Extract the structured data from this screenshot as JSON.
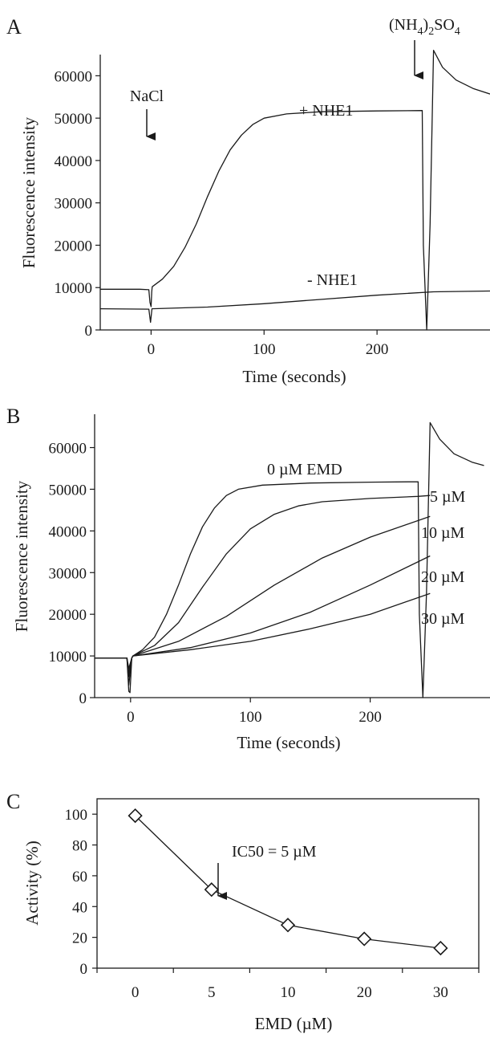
{
  "chart_data": [
    {
      "panel": "A",
      "type": "line",
      "title": "",
      "xlabel": "Time (seconds)",
      "ylabel": "Fluorescence intensity",
      "xlim": [
        -45,
        300
      ],
      "ylim": [
        0,
        65000
      ],
      "x_ticks": [
        0,
        100,
        200
      ],
      "y_ticks": [
        0,
        10000,
        20000,
        30000,
        40000,
        50000,
        60000
      ],
      "annotations": {
        "nacl": "NaCl",
        "ammonium_pre": "(NH",
        "ammonium_sub1": "4",
        "ammonium_mid": ")",
        "ammonium_sub2": "2",
        "ammonium_post": "SO",
        "ammonium_sub3": "4"
      },
      "series": [
        {
          "name": "+ NHE1",
          "points": [
            [
              -45,
              9600
            ],
            [
              -10,
              9600
            ],
            [
              -2,
              9500
            ],
            [
              -1,
              6500
            ],
            [
              0,
              5500
            ],
            [
              0.6,
              9000
            ],
            [
              1,
              10200
            ],
            [
              10,
              12000
            ],
            [
              20,
              15000
            ],
            [
              30,
              19500
            ],
            [
              40,
              25000
            ],
            [
              50,
              31500
            ],
            [
              60,
              37500
            ],
            [
              70,
              42500
            ],
            [
              80,
              46000
            ],
            [
              90,
              48500
            ],
            [
              100,
              50000
            ],
            [
              120,
              51000
            ],
            [
              150,
              51500
            ],
            [
              200,
              51700
            ],
            [
              240,
              51800
            ],
            [
              241,
              20000
            ],
            [
              244,
              0
            ],
            [
              247,
              25000
            ],
            [
              250,
              66000
            ],
            [
              258,
              62000
            ],
            [
              270,
              59000
            ],
            [
              285,
              57000
            ],
            [
              300,
              55700
            ]
          ]
        },
        {
          "name": "- NHE1",
          "points": [
            [
              -45,
              5000
            ],
            [
              -2,
              4900
            ],
            [
              -0.5,
              1800
            ],
            [
              0.8,
              5000
            ],
            [
              50,
              5400
            ],
            [
              100,
              6200
            ],
            [
              150,
              7200
            ],
            [
              200,
              8200
            ],
            [
              250,
              9000
            ],
            [
              300,
              9200
            ]
          ]
        }
      ]
    },
    {
      "panel": "B",
      "type": "line",
      "title": "",
      "xlabel": "Time (seconds)",
      "ylabel": "Fluorescence intensity",
      "xlim": [
        -30,
        300
      ],
      "ylim": [
        0,
        68000
      ],
      "x_ticks": [
        0,
        100,
        200
      ],
      "y_ticks": [
        0,
        10000,
        20000,
        30000,
        40000,
        50000,
        60000
      ],
      "series": [
        {
          "name": "0 µM EMD",
          "points": [
            [
              -30,
              9500
            ],
            [
              -3,
              9500
            ],
            [
              -1.5,
              1500
            ],
            [
              -0.5,
              1200
            ],
            [
              1,
              9500
            ],
            [
              2,
              10000
            ],
            [
              10,
              11500
            ],
            [
              20,
              14500
            ],
            [
              30,
              20000
            ],
            [
              40,
              27000
            ],
            [
              50,
              34500
            ],
            [
              60,
              41000
            ],
            [
              70,
              45500
            ],
            [
              80,
              48500
            ],
            [
              90,
              50000
            ],
            [
              110,
              51000
            ],
            [
              150,
              51500
            ],
            [
              200,
              51700
            ],
            [
              240,
              51800
            ],
            [
              241,
              20000
            ],
            [
              244,
              0
            ],
            [
              247,
              25000
            ],
            [
              250,
              66000
            ],
            [
              258,
              62000
            ],
            [
              270,
              58500
            ],
            [
              285,
              56500
            ],
            [
              295,
              55700
            ]
          ]
        },
        {
          "name": "5 µM",
          "points": [
            [
              -30,
              9500
            ],
            [
              -3,
              9500
            ],
            [
              -1.5,
              3000
            ],
            [
              1,
              9500
            ],
            [
              2,
              10000
            ],
            [
              20,
              12500
            ],
            [
              40,
              18000
            ],
            [
              60,
              26500
            ],
            [
              80,
              34500
            ],
            [
              100,
              40500
            ],
            [
              120,
              44000
            ],
            [
              140,
              46000
            ],
            [
              160,
              47000
            ],
            [
              200,
              47800
            ],
            [
              240,
              48300
            ],
            [
              250,
              48500
            ]
          ]
        },
        {
          "name": "10 µM",
          "points": [
            [
              -30,
              9500
            ],
            [
              -3,
              9500
            ],
            [
              -1.5,
              5000
            ],
            [
              1,
              9500
            ],
            [
              2,
              10000
            ],
            [
              40,
              13500
            ],
            [
              80,
              19500
            ],
            [
              120,
              27000
            ],
            [
              160,
              33500
            ],
            [
              200,
              38500
            ],
            [
              250,
              43500
            ]
          ]
        },
        {
          "name": "20 µM",
          "points": [
            [
              -30,
              9500
            ],
            [
              -3,
              9500
            ],
            [
              -1.5,
              6000
            ],
            [
              1,
              9500
            ],
            [
              2,
              10000
            ],
            [
              50,
              12000
            ],
            [
              100,
              15500
            ],
            [
              150,
              20500
            ],
            [
              200,
              27000
            ],
            [
              250,
              34000
            ]
          ]
        },
        {
          "name": "30 µM",
          "points": [
            [
              -30,
              9500
            ],
            [
              -3,
              9500
            ],
            [
              -1.5,
              7000
            ],
            [
              1,
              9500
            ],
            [
              2,
              10000
            ],
            [
              50,
              11500
            ],
            [
              100,
              13500
            ],
            [
              150,
              16500
            ],
            [
              200,
              20000
            ],
            [
              250,
              25000
            ]
          ]
        }
      ]
    },
    {
      "panel": "C",
      "type": "line",
      "title": "",
      "xlabel": "EMD (µM)",
      "ylabel": "Activity (%)",
      "categories": [
        "0",
        "5",
        "10",
        "20",
        "30"
      ],
      "ylim": [
        0,
        110
      ],
      "y_ticks": [
        0,
        20,
        40,
        60,
        80,
        100
      ],
      "annotation": "IC50 = 5 µM",
      "series": [
        {
          "name": "",
          "values": [
            99,
            51,
            28,
            19,
            13
          ]
        }
      ],
      "marker": "diamond"
    }
  ]
}
